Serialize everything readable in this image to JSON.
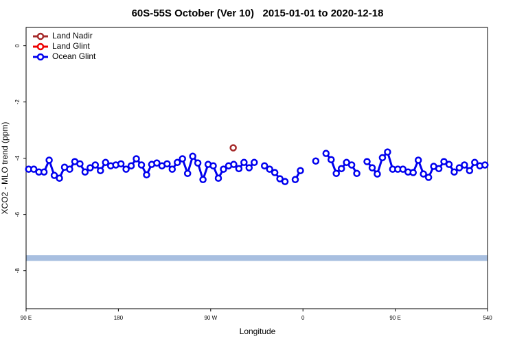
{
  "chart_data": {
    "type": "line",
    "title": "60S-55S October (Ver 10)   2015-01-01 to 2020-12-18",
    "x_label": "Longitude",
    "y_label": "XCO2 - MLO trend (ppm)",
    "xlim": [
      90,
      540
    ],
    "xticks": [
      {
        "value": 90,
        "label": "90 E"
      },
      180,
      {
        "value": 270,
        "label": "90 W"
      },
      {
        "value": 360,
        "label": "0"
      },
      {
        "value": 450,
        "label": "90 E"
      },
      540
    ],
    "ylim": [
      -9.35,
      0.65
    ],
    "yticks": [
      -8,
      -6,
      -4,
      -2,
      0
    ],
    "legend": "top-left",
    "reference_band": {
      "range": [
        -7.65,
        -7.45
      ],
      "color": "#a8bfe0"
    },
    "x": [
      92.5,
      97.5,
      102.5,
      107.5,
      112.5,
      117.5,
      122.5,
      127.5,
      132.5,
      137.5,
      142.5,
      147.5,
      152.5,
      157.5,
      162.5,
      167.5,
      172.5,
      177.5,
      182.5,
      187.5,
      192.5,
      197.5,
      202.5,
      207.5,
      212.5,
      217.5,
      222.5,
      227.5,
      232.5,
      237.5,
      242.5,
      247.5,
      252.5,
      257.5,
      262.5,
      267.5,
      272.5,
      277.5,
      282.5,
      287.5,
      292.5,
      297.5,
      302.5,
      307.5,
      312.5,
      317.5,
      322.5,
      327.5,
      332.5,
      337.5,
      342.5,
      347.5,
      352.5,
      357.5,
      362.5,
      367.5,
      372.5,
      377.5,
      382.5,
      387.5,
      392.5,
      397.5,
      402.5,
      407.5,
      412.5,
      417.5,
      422.5,
      427.5,
      432.5,
      437.5,
      442.5,
      447.5,
      452.5,
      457.5,
      462.5,
      467.5,
      472.5,
      477.5,
      482.5,
      487.5,
      492.5,
      497.5,
      502.5,
      507.5,
      512.5,
      517.5,
      522.5,
      527.5,
      532.5,
      537.5
    ],
    "series": [
      {
        "name": "Land Nadir",
        "color": "#a52a2a",
        "points": [
          {
            "x": 292,
            "y": -3.63
          }
        ]
      },
      {
        "name": "Land Glint",
        "color": "#ee0000",
        "points": []
      },
      {
        "name": "Ocean Glint",
        "color": "#0000ee",
        "values": [
          -4.39,
          -4.39,
          -4.49,
          -4.49,
          -4.07,
          -4.61,
          -4.71,
          -4.32,
          -4.39,
          -4.12,
          -4.2,
          -4.49,
          -4.34,
          -4.24,
          -4.44,
          -4.15,
          -4.27,
          -4.24,
          -4.2,
          -4.39,
          -4.27,
          -4.02,
          -4.24,
          -4.59,
          -4.22,
          -4.17,
          -4.27,
          -4.2,
          -4.39,
          -4.15,
          -4.02,
          -4.54,
          -3.93,
          -4.17,
          -4.76,
          -4.22,
          -4.27,
          -4.71,
          -4.39,
          -4.27,
          -4.22,
          -4.37,
          -4.15,
          -4.34,
          -4.15,
          null,
          -4.27,
          -4.39,
          -4.51,
          -4.73,
          -4.83,
          null,
          -4.76,
          -4.44,
          null,
          null,
          -4.1,
          null,
          -3.83,
          -4.05,
          -4.54,
          -4.37,
          -4.15,
          -4.24,
          -4.54,
          null,
          -4.12,
          -4.34,
          -4.56,
          -3.98,
          -3.78,
          -4.39,
          -4.39,
          -4.39,
          -4.49,
          -4.51,
          -4.07,
          -4.56,
          -4.68,
          -4.29,
          -4.37,
          -4.12,
          -4.22,
          -4.49,
          -4.34,
          -4.24,
          -4.44,
          -4.15,
          -4.27,
          -4.24
        ]
      }
    ]
  }
}
